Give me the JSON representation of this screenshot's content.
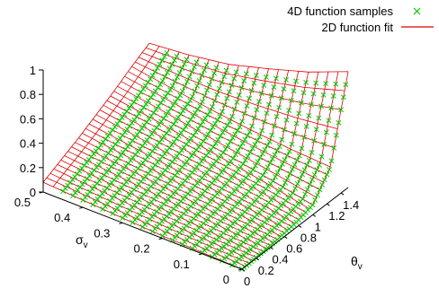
{
  "chart_data": {
    "type": "surface-3d",
    "title": "",
    "series": [
      {
        "name": "4D function samples",
        "kind": "points",
        "marker": "x",
        "color": "#00cc00"
      },
      {
        "name": "2D function fit",
        "kind": "wireframe",
        "color": "#dd0000"
      }
    ],
    "x_axis": {
      "label": "θ",
      "label_subscript": "v",
      "range": [
        0,
        1.5
      ],
      "ticks": [
        0,
        0.2,
        0.4,
        0.6,
        0.8,
        1,
        1.2,
        1.4
      ],
      "tick_labels": [
        "0",
        "0.2",
        "0.4",
        "0.6",
        "0.8",
        "1",
        "1.2",
        "1.4"
      ]
    },
    "y_axis": {
      "label": "σ",
      "label_subscript": "v",
      "range": [
        0,
        0.5
      ],
      "ticks": [
        0,
        0.1,
        0.2,
        0.3,
        0.4,
        0.5
      ],
      "tick_labels": [
        "0",
        "0.1",
        "0.2",
        "0.3",
        "0.4",
        "0.5"
      ]
    },
    "z_axis": {
      "label": "",
      "range": [
        0,
        1
      ],
      "ticks": [
        0,
        0.2,
        0.4,
        0.6,
        0.8,
        1
      ],
      "tick_labels": [
        "0",
        "0.2",
        "0.4",
        "0.6",
        "0.8",
        "1"
      ]
    },
    "surface_fit": {
      "sigma_values": [
        0,
        0.1,
        0.2,
        0.3,
        0.4,
        0.5
      ],
      "theta_values": [
        0,
        0.25,
        0.5,
        0.75,
        1.0,
        1.25,
        1.5
      ],
      "z_values": [
        [
          0.0,
          0.01,
          0.02,
          0.04,
          0.08,
          0.28,
          0.95
        ],
        [
          0.01,
          0.03,
          0.06,
          0.1,
          0.15,
          0.3,
          0.82
        ],
        [
          0.02,
          0.06,
          0.1,
          0.15,
          0.21,
          0.33,
          0.72
        ],
        [
          0.04,
          0.09,
          0.14,
          0.2,
          0.27,
          0.37,
          0.63
        ],
        [
          0.06,
          0.12,
          0.18,
          0.25,
          0.33,
          0.42,
          0.58
        ],
        [
          0.08,
          0.15,
          0.22,
          0.3,
          0.38,
          0.47,
          0.55
        ]
      ]
    },
    "samples": {
      "sigma_values": [
        0,
        0.025,
        0.05,
        0.075,
        0.1,
        0.125,
        0.15,
        0.175,
        0.2,
        0.225,
        0.25,
        0.275,
        0.3,
        0.325,
        0.35,
        0.375,
        0.4,
        0.425,
        0.45
      ],
      "theta_values": [
        0,
        0.1,
        0.2,
        0.3,
        0.4,
        0.5,
        0.6,
        0.7,
        0.8,
        0.9,
        1.0,
        1.1,
        1.2,
        1.3,
        1.4
      ],
      "note_z": "z = surface value"
    },
    "legend": {
      "position": "top-right"
    },
    "grid": false
  }
}
